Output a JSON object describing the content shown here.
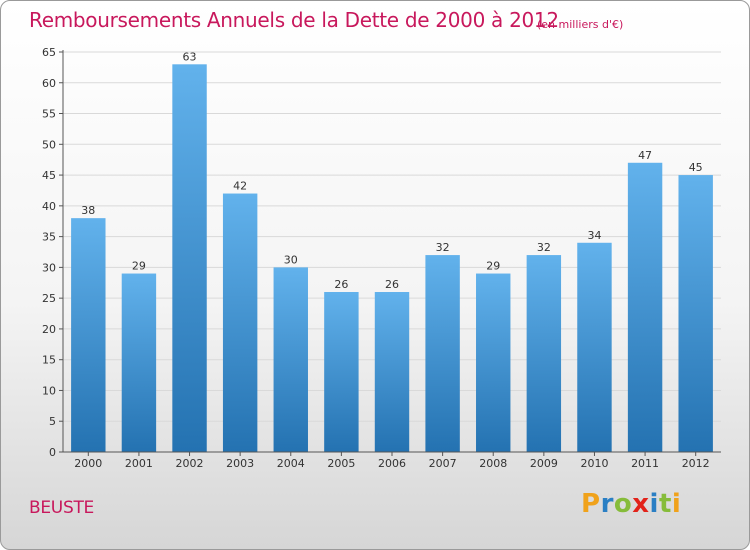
{
  "title": "Remboursements Annuels de la Dette de 2000 à 2012",
  "subtitle": "(en milliers d'€)",
  "commune": "BEUSTE",
  "logo": {
    "text": "Proxiti",
    "colors": [
      "#f0a21b",
      "#2a7fc4",
      "#86bc3a",
      "#e2231a",
      "#2a7fc4",
      "#86bc3a",
      "#f0a21b"
    ]
  },
  "colors": {
    "title": "#c8185c",
    "bar_top": "#62b2ec",
    "bar_bottom": "#2472b1",
    "grid": "#d9d9d9"
  },
  "chart_data": {
    "type": "bar",
    "categories": [
      "2000",
      "2001",
      "2002",
      "2003",
      "2004",
      "2005",
      "2006",
      "2007",
      "2008",
      "2009",
      "2010",
      "2011",
      "2012"
    ],
    "values": [
      38,
      29,
      63,
      42,
      30,
      26,
      26,
      32,
      29,
      32,
      34,
      47,
      45
    ],
    "title": "Remboursements Annuels de la Dette de 2000 à 2012",
    "subtitle": "(en milliers d'€)",
    "xlabel": "",
    "ylabel": "",
    "ylim": [
      0,
      65
    ],
    "yticks": [
      0,
      5,
      10,
      15,
      20,
      25,
      30,
      35,
      40,
      45,
      50,
      55,
      60,
      65
    ],
    "grid": true,
    "legend": "none"
  }
}
